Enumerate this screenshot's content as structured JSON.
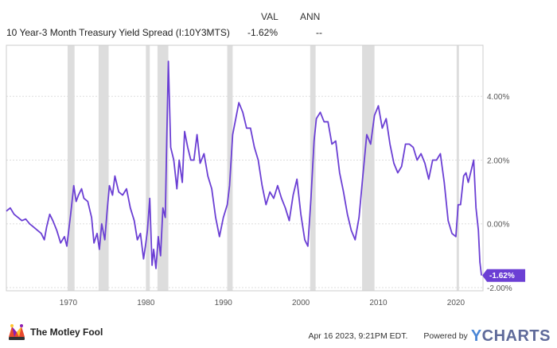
{
  "header": {
    "col_val": "VAL",
    "col_ann": "ANN",
    "series_label": "10 Year-3 Month Treasury Yield Spread (I:10Y3MTS)",
    "series_val": "-1.62%",
    "series_ann": "--"
  },
  "footer": {
    "brand": "The Motley Fool",
    "timestamp": "Apr 16 2023, 9:21PM EDT.",
    "powered_by": "Powered by",
    "ycharts_y": "Y",
    "ycharts_rest": "CHARTS"
  },
  "colors": {
    "line": "#6b3fd4",
    "recession": "#dddddd",
    "end_label_bg": "#6b3fd4"
  },
  "chart_data": {
    "type": "line",
    "title": "",
    "xlabel": "",
    "ylabel": "",
    "x_ticks": [
      1970,
      1980,
      1990,
      2000,
      2010,
      2020
    ],
    "y_ticks": [
      -2,
      0,
      2,
      4
    ],
    "y_tick_labels": [
      "-2.00%",
      "0.00%",
      "2.00%",
      "4.00%"
    ],
    "xlim": [
      1962.0,
      2023.5
    ],
    "ylim": [
      -2.1,
      5.6
    ],
    "grid": "horizontal",
    "end_label": "-1.62%",
    "recessions": [
      [
        1969.9,
        1970.8
      ],
      [
        1973.9,
        1975.2
      ],
      [
        1980.0,
        1980.5
      ],
      [
        1981.5,
        1982.9
      ],
      [
        1990.5,
        1991.2
      ],
      [
        2001.2,
        2001.9
      ],
      [
        2007.9,
        2009.5
      ],
      [
        2020.1,
        2020.4
      ]
    ],
    "series": [
      {
        "name": "10 Year-3 Month Treasury Yield Spread (I:10Y3MTS)",
        "x": [
          1962.0,
          1962.5,
          1963.0,
          1963.5,
          1964.0,
          1964.5,
          1965.0,
          1965.5,
          1966.0,
          1966.5,
          1966.9,
          1967.2,
          1967.6,
          1968.0,
          1968.5,
          1969.0,
          1969.5,
          1969.8,
          1970.3,
          1970.7,
          1971.0,
          1971.3,
          1971.7,
          1972.0,
          1972.5,
          1973.0,
          1973.3,
          1973.7,
          1974.0,
          1974.3,
          1974.7,
          1975.0,
          1975.3,
          1975.7,
          1976.0,
          1976.5,
          1977.0,
          1977.5,
          1978.0,
          1978.5,
          1978.9,
          1979.3,
          1979.7,
          1980.0,
          1980.2,
          1980.5,
          1980.8,
          1981.0,
          1981.3,
          1981.6,
          1981.9,
          1982.2,
          1982.5,
          1982.7,
          1982.9,
          1983.2,
          1983.6,
          1984.0,
          1984.3,
          1984.7,
          1985.0,
          1985.4,
          1985.8,
          1986.2,
          1986.6,
          1987.0,
          1987.5,
          1988.0,
          1988.5,
          1989.0,
          1989.5,
          1990.0,
          1990.5,
          1990.8,
          1991.2,
          1991.6,
          1992.0,
          1992.5,
          1993.0,
          1993.5,
          1994.0,
          1994.5,
          1995.0,
          1995.5,
          1996.0,
          1996.5,
          1997.0,
          1997.5,
          1998.0,
          1998.5,
          1999.0,
          1999.5,
          2000.0,
          2000.5,
          2000.9,
          2001.3,
          2001.7,
          2002.0,
          2002.5,
          2003.0,
          2003.5,
          2004.0,
          2004.5,
          2005.0,
          2005.5,
          2006.0,
          2006.5,
          2007.0,
          2007.5,
          2008.0,
          2008.5,
          2009.0,
          2009.5,
          2010.0,
          2010.5,
          2011.0,
          2011.5,
          2012.0,
          2012.5,
          2013.0,
          2013.5,
          2014.0,
          2014.5,
          2015.0,
          2015.5,
          2016.0,
          2016.5,
          2017.0,
          2017.5,
          2018.0,
          2018.5,
          2019.0,
          2019.5,
          2020.0,
          2020.3,
          2020.6,
          2021.0,
          2021.3,
          2021.6,
          2022.0,
          2022.3,
          2022.6,
          2022.9,
          2023.1,
          2023.3
        ],
        "values": [
          0.4,
          0.5,
          0.3,
          0.2,
          0.1,
          0.15,
          0.0,
          -0.1,
          -0.2,
          -0.3,
          -0.5,
          -0.1,
          0.3,
          0.1,
          -0.2,
          -0.6,
          -0.4,
          -0.7,
          0.3,
          1.2,
          0.7,
          0.9,
          1.1,
          0.8,
          0.7,
          0.2,
          -0.6,
          -0.3,
          -0.8,
          0.0,
          -0.5,
          0.4,
          1.2,
          0.9,
          1.5,
          1.0,
          0.9,
          1.1,
          0.5,
          0.1,
          -0.5,
          -0.3,
          -1.1,
          -0.6,
          -0.2,
          0.8,
          -1.3,
          -0.8,
          -1.4,
          -0.4,
          -1.0,
          0.5,
          0.2,
          2.7,
          5.1,
          2.4,
          2.0,
          1.1,
          2.0,
          1.3,
          2.9,
          2.4,
          2.0,
          2.0,
          2.8,
          1.9,
          2.2,
          1.5,
          1.1,
          0.2,
          -0.4,
          0.2,
          0.6,
          1.2,
          2.8,
          3.3,
          3.8,
          3.5,
          3.0,
          3.0,
          2.4,
          2.0,
          1.2,
          0.6,
          1.0,
          0.8,
          1.2,
          0.8,
          0.5,
          0.1,
          0.9,
          1.4,
          0.3,
          -0.5,
          -0.7,
          0.8,
          2.6,
          3.3,
          3.5,
          3.2,
          3.2,
          2.5,
          2.6,
          1.6,
          1.0,
          0.3,
          -0.2,
          -0.5,
          0.2,
          1.5,
          2.8,
          2.5,
          3.4,
          3.7,
          3.0,
          3.3,
          2.5,
          1.9,
          1.6,
          1.8,
          2.5,
          2.5,
          2.4,
          2.0,
          2.2,
          1.9,
          1.4,
          2.0,
          2.0,
          2.2,
          1.3,
          0.1,
          -0.3,
          -0.4,
          0.6,
          0.6,
          1.5,
          1.6,
          1.3,
          1.7,
          2.0,
          0.5,
          -0.2,
          -1.2,
          -1.62
        ]
      }
    ]
  }
}
